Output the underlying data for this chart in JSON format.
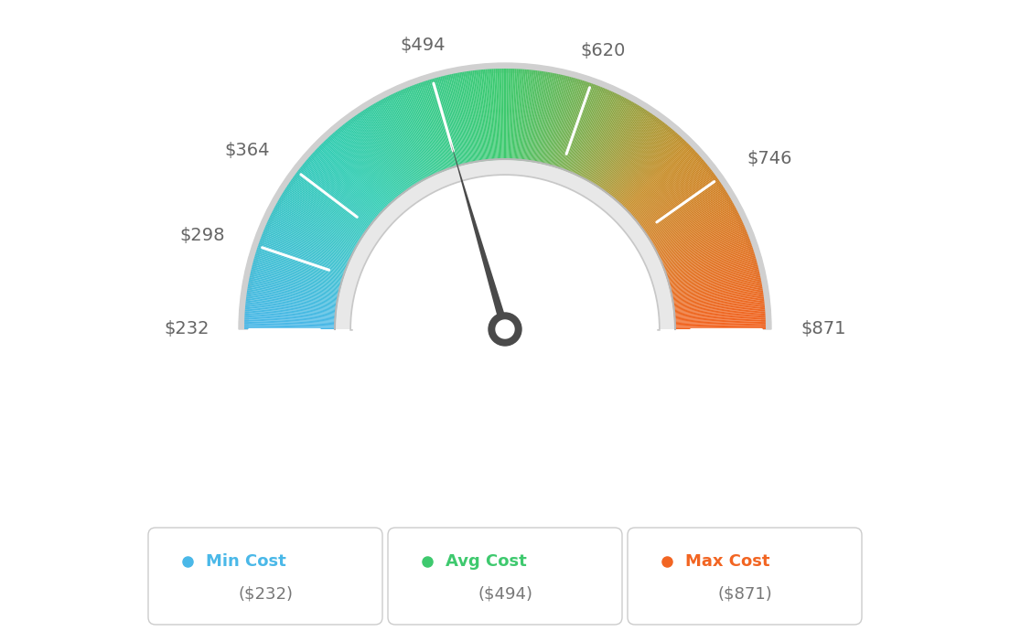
{
  "min_val": 232,
  "max_val": 871,
  "avg_val": 494,
  "labels": [
    "$232",
    "$298",
    "$364",
    "$494",
    "$620",
    "$746",
    "$871"
  ],
  "label_values": [
    232,
    298,
    364,
    494,
    620,
    746,
    871
  ],
  "legend": [
    {
      "label": "Min Cost",
      "value": "($232)",
      "color": "#4ab8e8"
    },
    {
      "label": "Avg Cost",
      "value": "($494)",
      "color": "#3ec96e"
    },
    {
      "label": "Max Cost",
      "value": "($871)",
      "color": "#f26522"
    }
  ],
  "background_color": "#ffffff",
  "needle_color": "#555555",
  "gauge_colors": {
    "segment_stops": [
      0.0,
      0.25,
      0.5,
      0.75,
      1.0
    ],
    "r": [
      0.29,
      0.18,
      0.24,
      0.78,
      0.95
    ],
    "g": [
      0.72,
      0.8,
      0.79,
      0.55,
      0.39
    ],
    "b": [
      0.91,
      0.7,
      0.43,
      0.15,
      0.13
    ]
  }
}
